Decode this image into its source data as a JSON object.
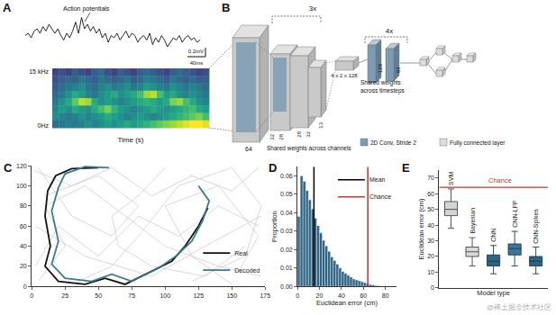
{
  "panels": {
    "A": {
      "label": "A",
      "annotation": "Action potentials",
      "scale_v": "0.2mV",
      "scale_t": "40ms",
      "freq_top": "15 kHz",
      "freq_bottom": "0Hz",
      "xlabel": "Time (s)",
      "signal": [
        0.05,
        0.1,
        0.0,
        0.15,
        0.2,
        0.1,
        0.25,
        0.15,
        0.3,
        0.2,
        0.1,
        0.2,
        0.05,
        -0.05,
        0.1,
        0.0,
        0.15,
        0.35,
        0.1,
        0.45,
        0.2,
        0.3,
        0.15,
        0.25,
        0.1,
        0.2,
        0.0,
        0.1,
        -0.1,
        0.05,
        0.0,
        0.1,
        -0.05,
        0.05,
        0.15,
        0.0,
        0.1,
        0.05,
        -0.1,
        0.0,
        0.05,
        -0.05,
        0.1,
        -0.15,
        0.0,
        -0.1,
        0.05,
        -0.05,
        -0.2,
        -0.1,
        0.0,
        -0.05,
        0.05,
        -0.1,
        0.0,
        0.05,
        -0.05,
        0.0,
        -0.1,
        -0.05
      ],
      "spectrogram": [
        [
          0.2,
          0.25,
          0.2,
          0.3,
          0.25,
          0.2,
          0.3,
          0.35,
          0.25,
          0.2,
          0.3,
          0.25,
          0.2,
          0.3,
          0.35,
          0.3,
          0.25,
          0.2,
          0.3,
          0.35,
          0.3,
          0.25,
          0.2,
          0.25
        ],
        [
          0.25,
          0.3,
          0.35,
          0.3,
          0.4,
          0.35,
          0.3,
          0.4,
          0.35,
          0.3,
          0.35,
          0.4,
          0.3,
          0.35,
          0.45,
          0.4,
          0.35,
          0.3,
          0.4,
          0.35,
          0.3,
          0.35,
          0.3,
          0.3
        ],
        [
          0.3,
          0.35,
          0.4,
          0.45,
          0.5,
          0.4,
          0.35,
          0.45,
          0.5,
          0.4,
          0.45,
          0.5,
          0.4,
          0.45,
          0.55,
          0.5,
          0.45,
          0.4,
          0.5,
          0.45,
          0.4,
          0.45,
          0.4,
          0.35
        ],
        [
          0.35,
          0.4,
          0.5,
          0.6,
          0.55,
          0.45,
          0.4,
          0.5,
          0.55,
          0.6,
          0.5,
          0.55,
          0.6,
          0.7,
          0.85,
          0.9,
          0.7,
          0.55,
          0.6,
          0.5,
          0.45,
          0.5,
          0.45,
          0.4
        ],
        [
          0.4,
          0.5,
          0.6,
          0.75,
          0.9,
          0.85,
          0.6,
          0.5,
          0.55,
          0.5,
          0.45,
          0.5,
          0.55,
          0.6,
          0.65,
          0.6,
          0.55,
          0.6,
          0.8,
          0.85,
          0.7,
          0.6,
          0.5,
          0.45
        ],
        [
          0.45,
          0.55,
          0.5,
          0.6,
          0.55,
          0.5,
          0.6,
          0.7,
          0.8,
          0.65,
          0.55,
          0.5,
          0.45,
          0.5,
          0.55,
          0.6,
          0.55,
          0.5,
          0.55,
          0.6,
          0.65,
          0.7,
          0.6,
          0.55
        ],
        [
          0.5,
          0.45,
          0.4,
          0.45,
          0.5,
          0.45,
          0.5,
          0.55,
          0.6,
          0.55,
          0.5,
          0.45,
          0.5,
          0.55,
          0.5,
          0.45,
          0.5,
          0.55,
          0.6,
          0.65,
          0.7,
          0.75,
          0.8,
          0.7
        ],
        [
          0.35,
          0.4,
          0.45,
          0.4,
          0.45,
          0.5,
          0.45,
          0.5,
          0.55,
          0.5,
          0.55,
          0.6,
          0.55,
          0.6,
          0.65,
          0.7,
          0.75,
          0.8,
          0.85,
          0.9,
          0.95,
          1,
          1,
          0.95
        ]
      ]
    },
    "B": {
      "label": "B",
      "repeat_conv": "3x",
      "dims": [
        "64",
        "28",
        "32",
        "28",
        "32",
        "13"
      ],
      "bottleneck": "4 x 2 x 128",
      "repeat_time": "4x",
      "time_dims": [
        "128",
        "64"
      ],
      "shared_channels": "Shared weights across channels",
      "shared_time": [
        "Shared weights",
        "across timesteps"
      ],
      "legend": [
        {
          "name": "2D Conv, Stride 2",
          "color": "#7d9bb3"
        },
        {
          "name": "Fully connected layer",
          "color": "#dcdcdc"
        }
      ]
    }
  },
  "chart_data": [
    {
      "panel": "C",
      "type": "line",
      "grid": false,
      "legend": "lower right",
      "xlim": [
        0,
        175
      ],
      "xticks": [
        0,
        25,
        50,
        75,
        100,
        125,
        150,
        175
      ],
      "ylim": [
        0,
        120
      ],
      "yticks": [
        0,
        20,
        40,
        60,
        80,
        100,
        120
      ],
      "series": [
        {
          "color": "#bdbdbd",
          "x": [
            2,
            30,
            60,
            90,
            120,
            150,
            170
          ],
          "values": [
            115,
            100,
            118,
            90,
            110,
            95,
            118
          ]
        },
        {
          "color": "#bdbdbd",
          "x": [
            5,
            25,
            10,
            40,
            70,
            100,
            140,
            172
          ],
          "values": [
            5,
            40,
            80,
            100,
            70,
            40,
            20,
            10
          ]
        },
        {
          "color": "#bdbdbd",
          "x": [
            170,
            140,
            110,
            80,
            50,
            20,
            3
          ],
          "values": [
            60,
            80,
            50,
            70,
            30,
            60,
            20
          ]
        },
        {
          "color": "#bdbdbd",
          "x": [
            30,
            60,
            80,
            110,
            150,
            172,
            160,
            120
          ],
          "values": [
            2,
            20,
            50,
            100,
            118,
            80,
            30,
            5
          ]
        },
        {
          "color": "#bdbdbd",
          "x": [
            3,
            40,
            90,
            130,
            172
          ],
          "values": [
            60,
            30,
            10,
            40,
            70
          ]
        },
        {
          "color": "#bdbdbd",
          "x": [
            100,
            80,
            60,
            65,
            90,
            130,
            160
          ],
          "values": [
            118,
            90,
            70,
            40,
            20,
            10,
            40
          ]
        },
        {
          "color": "#bdbdbd",
          "x": [
            150,
            120,
            100,
            140,
            170,
            155
          ],
          "values": [
            2,
            30,
            80,
            100,
            50,
            15
          ]
        },
        {
          "color": "#bdbdbd",
          "x": [
            10,
            50,
            80,
            60,
            30,
            5
          ],
          "values": [
            90,
            110,
            80,
            50,
            70,
            118
          ]
        },
        {
          "name": "Real",
          "color": "#111111",
          "x": [
            50,
            30,
            18,
            12,
            10,
            14,
            10,
            20,
            40,
            55,
            70,
            90,
            105,
            115,
            125,
            132
          ],
          "values": [
            118,
            117,
            110,
            95,
            70,
            40,
            20,
            5,
            2,
            8,
            2,
            15,
            25,
            40,
            60,
            78
          ]
        },
        {
          "name": "Decoded",
          "color": "#3d7a8c",
          "x": [
            58,
            40,
            25,
            20,
            15,
            20,
            15,
            25,
            45,
            60,
            75,
            95,
            108,
            120,
            128,
            133,
            125
          ],
          "values": [
            118,
            119,
            112,
            98,
            75,
            45,
            22,
            8,
            5,
            12,
            5,
            18,
            30,
            45,
            65,
            85,
            100
          ]
        }
      ]
    },
    {
      "panel": "D",
      "type": "histogram",
      "grid": false,
      "legend": "upper right",
      "xlabel": "Euclidean error (cm)",
      "ylabel": "Proportion",
      "color": "#2e6384",
      "xlim": [
        0,
        90
      ],
      "xticks": [
        0,
        20,
        40,
        60,
        80
      ],
      "ylim": [
        0,
        0.065
      ],
      "yticks": [
        {
          "value": 0,
          "label": "0.00"
        },
        {
          "value": 0.01,
          "label": "0.01"
        },
        {
          "value": 0.02,
          "label": "0.02"
        },
        {
          "value": 0.03,
          "label": "0.03"
        },
        {
          "value": 0.04,
          "label": "0.04"
        },
        {
          "value": 0.05,
          "label": "0.05"
        },
        {
          "value": 0.06,
          "label": "0.06"
        }
      ],
      "bins": [
        0,
        2.5,
        5,
        7.5,
        10,
        12.5,
        15,
        17.5,
        20,
        22.5,
        25,
        27.5,
        30,
        32.5,
        35,
        37.5,
        40,
        42.5,
        45,
        47.5,
        50,
        52.5,
        55,
        57.5,
        60,
        62.5,
        65,
        67.5,
        70,
        72.5,
        75
      ],
      "counts": [
        0.038,
        0.06,
        0.057,
        0.052,
        0.047,
        0.042,
        0.037,
        0.033,
        0.029,
        0.025,
        0.022,
        0.019,
        0.016,
        0.014,
        0.012,
        0.01,
        0.008,
        0.007,
        0.006,
        0.005,
        0.004,
        0.0035,
        0.003,
        0.0025,
        0.002,
        0.0015,
        0.001,
        0.0008,
        0.0005,
        0.0003
      ],
      "lines": [
        {
          "name": "Mean",
          "value": 15,
          "color": "#000000"
        },
        {
          "name": "Chance",
          "value": 64,
          "color": "#c0392b"
        }
      ]
    },
    {
      "panel": "E",
      "type": "box",
      "grid": false,
      "tick_labels": "y",
      "xlabel": "Model type",
      "ylabel": "Euclidean error (cm)",
      "ylim": [
        0,
        75
      ],
      "yticks": [
        0,
        10,
        20,
        30,
        40,
        50,
        60,
        70
      ],
      "categories": [
        "SVM",
        "Bayesian",
        "CNN",
        "CNN-LFP",
        "CNN-Spikes"
      ],
      "colors": [
        "#d4d4d4",
        "#d9d9d9",
        "#2e6384",
        "#3c7597",
        "#2e6384"
      ],
      "whislo": [
        38,
        14,
        9,
        14,
        9
      ],
      "q1": [
        46,
        20,
        14,
        21,
        14
      ],
      "median": [
        50,
        23,
        17,
        25,
        17
      ],
      "q3": [
        55,
        26,
        21,
        28,
        20
      ],
      "whishi": [
        63,
        32,
        27,
        36,
        26
      ],
      "reference": {
        "name": "Chance",
        "value": 64,
        "color": "#c0392b"
      }
    }
  ],
  "watermark": "@稀土掘金技术社区"
}
